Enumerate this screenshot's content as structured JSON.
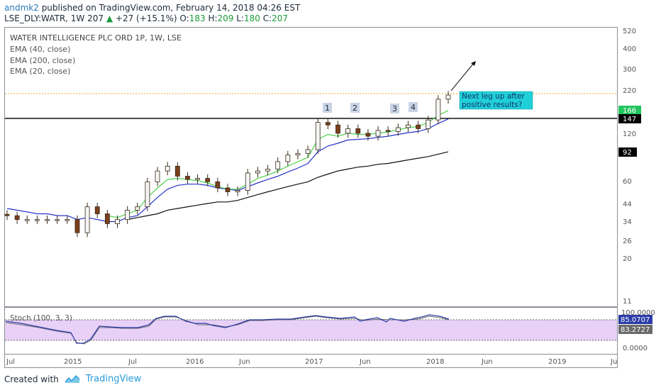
{
  "header": {
    "author": "andmk2",
    "published": "published on TradingView.com, February 14, 2018 04:26 EST",
    "symbol": "LSE_DLY:WATR, 1W",
    "last": "207",
    "change": "+27 (+15.1%)",
    "o_label": "O:",
    "o_val": "183",
    "h_label": "H:",
    "h_val": "209",
    "l_label": "L:",
    "l_val": "180",
    "c_label": "C:",
    "c_val": "207"
  },
  "legend": {
    "title": "WATER INTELLIGENCE PLC ORD 1P, 1W, LSE",
    "ema1": "EMA (40, close)",
    "ema2": "EMA (200, close)",
    "ema3": "EMA (20, close)"
  },
  "annotations": {
    "wave_labels": [
      "1",
      "2",
      "3",
      "4"
    ],
    "callout": [
      "Next leg up after",
      "positive results?"
    ]
  },
  "price_axis": {
    "ticks": [
      "520",
      "400",
      "300",
      "220",
      "120",
      "60",
      "44",
      "34",
      "26",
      "20",
      "11"
    ],
    "badges": [
      {
        "text": "166",
        "color": "#22c55e"
      },
      {
        "text": "147",
        "color": "#000000"
      },
      {
        "text": "92",
        "color": "#000000"
      }
    ]
  },
  "time_axis": {
    "ticks": [
      "Jul",
      "2015",
      "Jul",
      "2016",
      "Jun",
      "2017",
      "Jun",
      "2018",
      "Jun",
      "2019",
      "Ju"
    ]
  },
  "stoch": {
    "label": "Stoch (100, 3, 3)",
    "top_tick": "100.0000",
    "bottom_tick": "0.0000",
    "k_value": "85.0707",
    "d_value": "83.2727",
    "k_color": "#2c3ca8",
    "d_color": "#6b6b6b",
    "band_color": "#e8d0f7"
  },
  "footer": {
    "created_with": "Created with",
    "brand": "TradingView"
  },
  "colors": {
    "ema20": "#4cd24c",
    "ema40": "#2733c8",
    "ema200": "#111111",
    "up_candle": "#f5f5f5",
    "down_candle": "#7a3f1a",
    "resistance": "#111111",
    "current_price_line": "#f0a030",
    "callout_bg": "#20d0d8"
  },
  "chart_data": {
    "type": "candlestick",
    "title": "WATER INTELLIGENCE PLC ORD 1P, 1W, LSE",
    "scale": "log",
    "ylim": [
      11,
      520
    ],
    "x": [
      "2014-06",
      "2014-07",
      "2014-08",
      "2014-09",
      "2014-10",
      "2014-11",
      "2014-12",
      "2015-01",
      "2015-02",
      "2015-03",
      "2015-04",
      "2015-05",
      "2015-06",
      "2015-07",
      "2015-08",
      "2015-09",
      "2015-10",
      "2015-11",
      "2015-12",
      "2016-01",
      "2016-02",
      "2016-03",
      "2016-04",
      "2016-05",
      "2016-06",
      "2016-07",
      "2016-08",
      "2016-09",
      "2016-10",
      "2016-11",
      "2016-12",
      "2017-01",
      "2017-02",
      "2017-03",
      "2017-04",
      "2017-05",
      "2017-06",
      "2017-07",
      "2017-08",
      "2017-09",
      "2017-10",
      "2017-11",
      "2017-12",
      "2018-01",
      "2018-02"
    ],
    "close": [
      37,
      35,
      35,
      35,
      35,
      35,
      35,
      29,
      42,
      38,
      33,
      35,
      40,
      42,
      60,
      70,
      75,
      65,
      62,
      63,
      60,
      55,
      52,
      53,
      68,
      70,
      72,
      80,
      88,
      90,
      95,
      140,
      135,
      120,
      128,
      120,
      115,
      125,
      123,
      130,
      135,
      128,
      145,
      195,
      207
    ],
    "ema20": [
      null,
      null,
      null,
      null,
      null,
      null,
      null,
      null,
      null,
      null,
      37,
      36,
      38,
      40,
      48,
      55,
      62,
      63,
      62,
      61,
      59,
      56,
      54,
      54,
      58,
      63,
      66,
      70,
      75,
      80,
      85,
      110,
      118,
      115,
      120,
      118,
      118,
      120,
      122,
      126,
      130,
      132,
      140,
      155,
      166
    ],
    "ema40": [
      41,
      40,
      39,
      38,
      38,
      37,
      37,
      35,
      36,
      35,
      34,
      34,
      36,
      37,
      42,
      48,
      54,
      57,
      58,
      58,
      57,
      55,
      54,
      53,
      56,
      59,
      62,
      65,
      69,
      73,
      78,
      92,
      100,
      104,
      109,
      110,
      111,
      113,
      115,
      118,
      121,
      123,
      128,
      138,
      147
    ],
    "ema200": [
      null,
      null,
      null,
      null,
      null,
      null,
      null,
      null,
      null,
      null,
      null,
      null,
      35,
      36,
      37,
      38,
      40,
      41,
      42,
      43,
      44,
      45,
      45,
      46,
      48,
      50,
      52,
      54,
      56,
      58,
      60,
      64,
      67,
      70,
      72,
      74,
      75,
      77,
      78,
      80,
      82,
      84,
      86,
      89,
      92
    ],
    "resistance_level": 147,
    "current_price": 207,
    "price_badges": [
      166,
      147,
      92
    ],
    "stoch": {
      "k": 85.0707,
      "d": 83.2727,
      "upper": 80,
      "lower": 20,
      "range": [
        0,
        100
      ]
    }
  }
}
